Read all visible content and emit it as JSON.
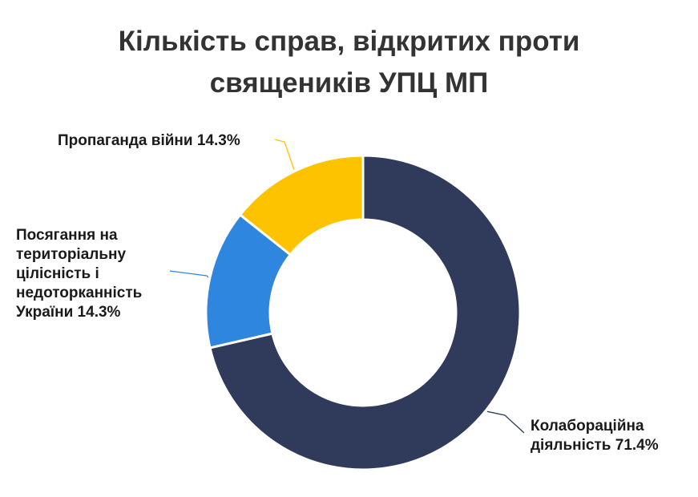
{
  "chart_data": {
    "type": "pie",
    "title": "Кількість справ, відкритих проти священиків УПЦ МП",
    "title_lines": [
      "Кількість справ, відкритих проти",
      "священиків УПЦ МП"
    ],
    "donut": true,
    "slices": [
      {
        "label": "Колабораційна діяльність 71.4%",
        "label_lines": "Колабораційна\nдіяльність 71.4%",
        "value": 71.4,
        "color": "#303b5c"
      },
      {
        "label": "Посягання на територіальну цілісність і недоторканність України 14.3%",
        "label_lines": "Посягання на\nтериторіальну\nцілісність і\nнедоторканність\nУкраїни 14.3%",
        "value": 14.3,
        "color": "#2e86de"
      },
      {
        "label": "Пропаганда війни 14.3%",
        "label_lines": "Пропаганда війни 14.3%",
        "value": 14.3,
        "color": "#fdc300"
      }
    ]
  }
}
